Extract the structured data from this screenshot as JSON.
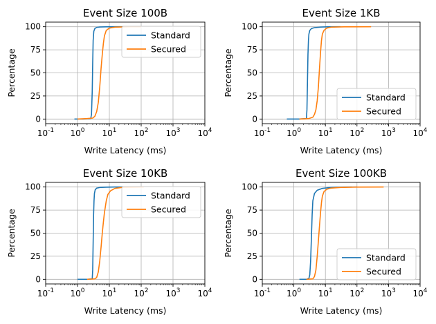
{
  "chart_data": [
    {
      "type": "line",
      "title": "Event Size 100B",
      "xlabel": "Write Latency (ms)",
      "ylabel": "Percentage",
      "xscale": "log",
      "xlim": [
        0.1,
        10000
      ],
      "ylim": [
        -5,
        105
      ],
      "yticks": [
        "0",
        "25",
        "50",
        "75",
        "100"
      ],
      "xticks": [
        "10^-1",
        "10^0",
        "10^1",
        "10^2",
        "10^3",
        "10^4"
      ],
      "grid": true,
      "legend_location": "upper right",
      "series": [
        {
          "name": "Standard",
          "color": "#1f77b4",
          "x": [
            0.8,
            1.5,
            2.6,
            2.75,
            2.9,
            3.0,
            3.1,
            3.25,
            3.5,
            4.0,
            5.0,
            8.0,
            15,
            50,
            100
          ],
          "y": [
            0,
            0,
            0.5,
            5,
            30,
            60,
            85,
            95,
            98,
            99.3,
            99.7,
            99.9,
            100,
            100,
            100
          ]
        },
        {
          "name": "Secured",
          "color": "#ff7f0e",
          "x": [
            1.0,
            2.0,
            3.0,
            3.5,
            4.0,
            4.5,
            5.0,
            5.5,
            6.0,
            6.5,
            7.0,
            8.0,
            10,
            15,
            50,
            100
          ],
          "y": [
            0,
            0.5,
            1,
            3,
            8,
            18,
            35,
            55,
            70,
            82,
            90,
            96,
            98.5,
            99.5,
            100,
            100
          ]
        }
      ]
    },
    {
      "type": "line",
      "title": "Event Size 1KB",
      "xlabel": "Write Latency (ms)",
      "ylabel": "Percentage",
      "xscale": "log",
      "xlim": [
        0.1,
        10000
      ],
      "ylim": [
        -5,
        105
      ],
      "yticks": [
        "0",
        "25",
        "50",
        "75",
        "100"
      ],
      "xticks": [
        "10^-1",
        "10^0",
        "10^1",
        "10^2",
        "10^3",
        "10^4"
      ],
      "grid": true,
      "legend_location": "lower right",
      "series": [
        {
          "name": "Standard",
          "color": "#1f77b4",
          "x": [
            0.6,
            1.5,
            2.5,
            2.6,
            2.7,
            2.8,
            2.9,
            3.0,
            3.2,
            3.6,
            4.5,
            7.0,
            12,
            30
          ],
          "y": [
            0,
            0,
            0.5,
            10,
            40,
            70,
            85,
            92,
            96,
            98,
            99,
            99.6,
            99.9,
            100
          ]
        },
        {
          "name": "Secured",
          "color": "#ff7f0e",
          "x": [
            1.5,
            3.0,
            4.0,
            4.5,
            5.0,
            5.5,
            6.0,
            6.5,
            7.0,
            7.5,
            8.0,
            9.0,
            11,
            15,
            40,
            280
          ],
          "y": [
            0,
            0.5,
            2,
            5,
            10,
            20,
            35,
            55,
            72,
            85,
            92,
            96,
            98.5,
            99.5,
            99.9,
            100
          ]
        }
      ]
    },
    {
      "type": "line",
      "title": "Event Size 10KB",
      "xlabel": "Write Latency (ms)",
      "ylabel": "Percentage",
      "xscale": "log",
      "xlim": [
        0.1,
        10000
      ],
      "ylim": [
        -5,
        105
      ],
      "yticks": [
        "0",
        "25",
        "50",
        "75",
        "100"
      ],
      "xticks": [
        "10^-1",
        "10^0",
        "10^1",
        "10^2",
        "10^3",
        "10^4"
      ],
      "grid": true,
      "legend_location": "upper right",
      "series": [
        {
          "name": "Standard",
          "color": "#1f77b4",
          "x": [
            1.0,
            2.0,
            2.9,
            3.0,
            3.1,
            3.2,
            3.3,
            3.4,
            3.6,
            4.0,
            5.0,
            8.0,
            15,
            50
          ],
          "y": [
            0,
            0,
            0.5,
            10,
            40,
            70,
            85,
            93,
            97,
            98.8,
            99.5,
            99.8,
            100,
            100
          ]
        },
        {
          "name": "Secured",
          "color": "#ff7f0e",
          "x": [
            2.0,
            3.5,
            4.0,
            4.5,
            5.0,
            5.5,
            6.0,
            6.5,
            7.0,
            8.0,
            9.0,
            11,
            15,
            25,
            120
          ],
          "y": [
            0,
            0.5,
            2,
            8,
            20,
            35,
            50,
            62,
            72,
            85,
            92,
            96,
            98.5,
            99.5,
            100
          ]
        }
      ]
    },
    {
      "type": "line",
      "title": "Event Size 100KB",
      "xlabel": "Write Latency (ms)",
      "ylabel": "Percentage",
      "xscale": "log",
      "xlim": [
        0.1,
        10000
      ],
      "ylim": [
        -5,
        105
      ],
      "yticks": [
        "0",
        "25",
        "50",
        "75",
        "100"
      ],
      "xticks": [
        "10^-1",
        "10^0",
        "10^1",
        "10^2",
        "10^3",
        "10^4"
      ],
      "grid": true,
      "legend_location": "lower right",
      "series": [
        {
          "name": "Standard",
          "color": "#1f77b4",
          "x": [
            1.5,
            2.5,
            3.0,
            3.2,
            3.4,
            3.6,
            3.8,
            4.0,
            4.5,
            5.5,
            8.0,
            15,
            40,
            100
          ],
          "y": [
            0,
            0,
            1,
            5,
            20,
            45,
            70,
            85,
            93,
            96.5,
            98.5,
            99.5,
            99.9,
            100
          ]
        },
        {
          "name": "Secured",
          "color": "#ff7f0e",
          "x": [
            2.5,
            4.0,
            4.5,
            5.0,
            5.5,
            6.0,
            6.5,
            7.0,
            7.5,
            8.0,
            9.0,
            11,
            15,
            30,
            100,
            700
          ],
          "y": [
            0,
            0.5,
            3,
            10,
            25,
            42,
            58,
            72,
            83,
            90,
            95,
            97.5,
            98.8,
            99.5,
            99.9,
            100
          ]
        }
      ]
    }
  ]
}
